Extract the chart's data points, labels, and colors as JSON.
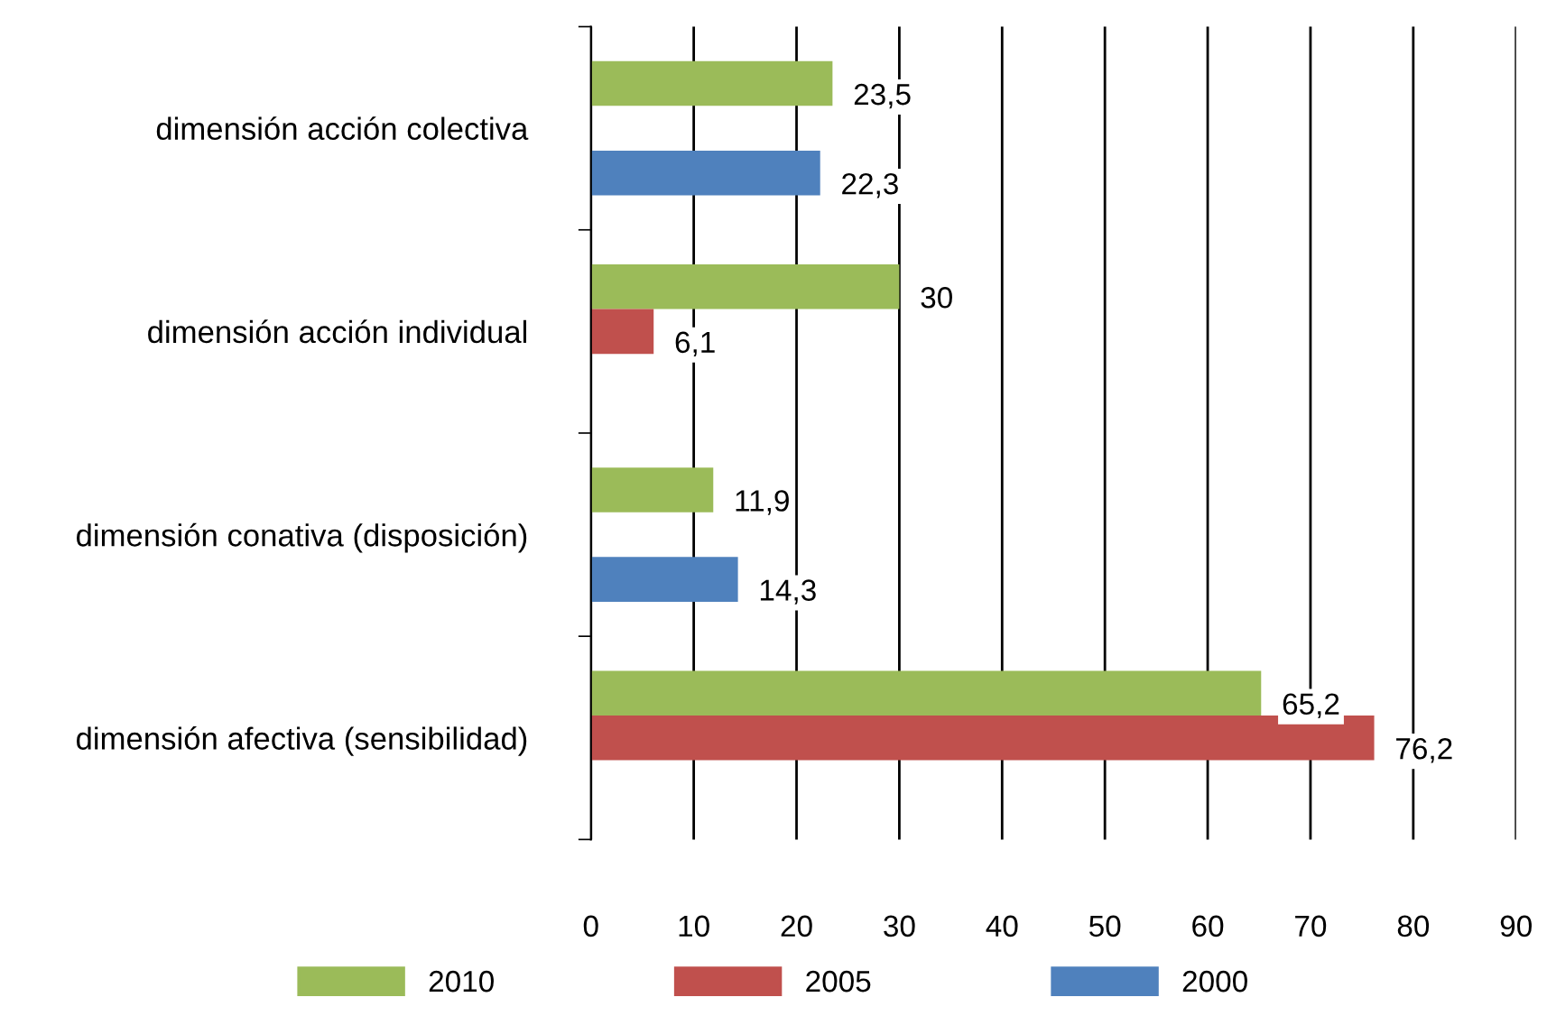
{
  "chart_data": {
    "type": "bar",
    "orientation": "horizontal",
    "categories": [
      "dimensión acción colectiva",
      "dimensión acción individual",
      "dimensión conativa (disposición)",
      "dimensión afectiva (sensibilidad)"
    ],
    "series": [
      {
        "name": "2010",
        "color": "#9bbb59",
        "values": [
          23.5,
          30,
          11.9,
          65.2
        ],
        "value_labels": [
          "23,5",
          "30",
          "11,9",
          "65,2"
        ]
      },
      {
        "name": "2005",
        "color": "#c0504d",
        "values": [
          null,
          6.1,
          null,
          76.2
        ],
        "value_labels": [
          null,
          "6,1",
          null,
          "76,2"
        ]
      },
      {
        "name": "2000",
        "color": "#4f81bd",
        "values": [
          22.3,
          null,
          14.3,
          null
        ],
        "value_labels": [
          "22,3",
          null,
          "14,3",
          null
        ]
      }
    ],
    "xlim": [
      0,
      90
    ],
    "xticks": [
      0,
      10,
      20,
      30,
      40,
      50,
      60,
      70,
      80,
      90
    ],
    "grid": "x",
    "legend": "bottom"
  }
}
